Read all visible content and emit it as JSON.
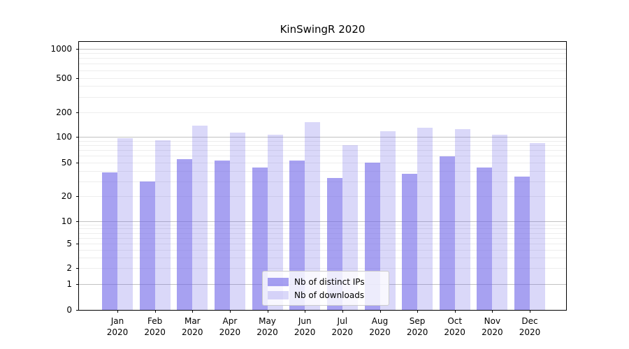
{
  "chart_data": {
    "type": "bar",
    "title": "KinSwingR 2020",
    "x_months": [
      "Jan",
      "Feb",
      "Mar",
      "Apr",
      "May",
      "Jun",
      "Jul",
      "Aug",
      "Sep",
      "Oct",
      "Nov",
      "Dec"
    ],
    "x_year": "2020",
    "y_ticks": [
      0,
      1,
      2,
      5,
      10,
      20,
      50,
      100,
      200,
      500,
      1000
    ],
    "y_scale": "symlog",
    "ylim": [
      0,
      1200
    ],
    "grid": true,
    "legend_position": "lower-center-inside",
    "accent_color": "#6c63e8",
    "series": [
      {
        "name": "Nb of distinct IPs",
        "color": "rgba(108,99,232,0.6)",
        "values": [
          38,
          30,
          55,
          53,
          44,
          53,
          33,
          50,
          37,
          59,
          44,
          34
        ]
      },
      {
        "name": "Nb of downloads",
        "color": "rgba(108,99,232,0.25)",
        "values": [
          96,
          92,
          138,
          112,
          106,
          152,
          80,
          117,
          130,
          125,
          107,
          85
        ]
      }
    ]
  }
}
